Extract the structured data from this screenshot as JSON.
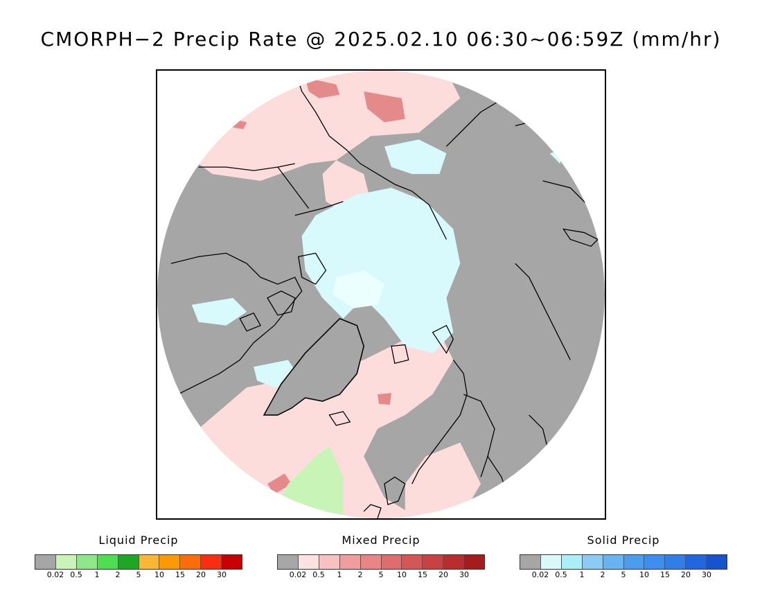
{
  "title": "CMORPH−2 Precip Rate @ 2025.02.10 06:30~06:59Z (mm/hr)",
  "map": {
    "projection": "polar-stereographic-north",
    "colors": {
      "no_precip": "#a6a6a6",
      "mixed_light": "#fddcdc",
      "mixed_mid": "#e58a8a",
      "mixed_heavy": "#d75050",
      "solid_light": "#d8fafc",
      "liquid_light": "#c8f4b8",
      "coast": "#000000"
    }
  },
  "legends": [
    {
      "title": "Liquid Precip",
      "colors": [
        "#a6a6a6",
        "#c8f4b8",
        "#8ee88a",
        "#4ede52",
        "#1ca822",
        "#fbb733",
        "#fb9a05",
        "#fa6e09",
        "#f72e11",
        "#c90000"
      ],
      "ticks": [
        "0.02",
        "0.5",
        "1",
        "2",
        "5",
        "10",
        "15",
        "20",
        "30"
      ]
    },
    {
      "title": "Mixed Precip",
      "colors": [
        "#a6a6a6",
        "#fde2e2",
        "#f9c2c2",
        "#f29d9d",
        "#e88585",
        "#de6d6d",
        "#d35757",
        "#c84242",
        "#b82d2d",
        "#a31d1d"
      ],
      "ticks": [
        "0.02",
        "0.5",
        "1",
        "2",
        "5",
        "10",
        "15",
        "20",
        "30"
      ]
    },
    {
      "title": "Solid Precip",
      "colors": [
        "#a6a6a6",
        "#dafafa",
        "#aaeef8",
        "#8ccbf6",
        "#67b4f3",
        "#4b9eef",
        "#3c8fec",
        "#2f7fe7",
        "#2066df",
        "#1654cf"
      ],
      "ticks": [
        "0.02",
        "0.5",
        "1",
        "2",
        "5",
        "10",
        "15",
        "20",
        "30"
      ]
    }
  ]
}
